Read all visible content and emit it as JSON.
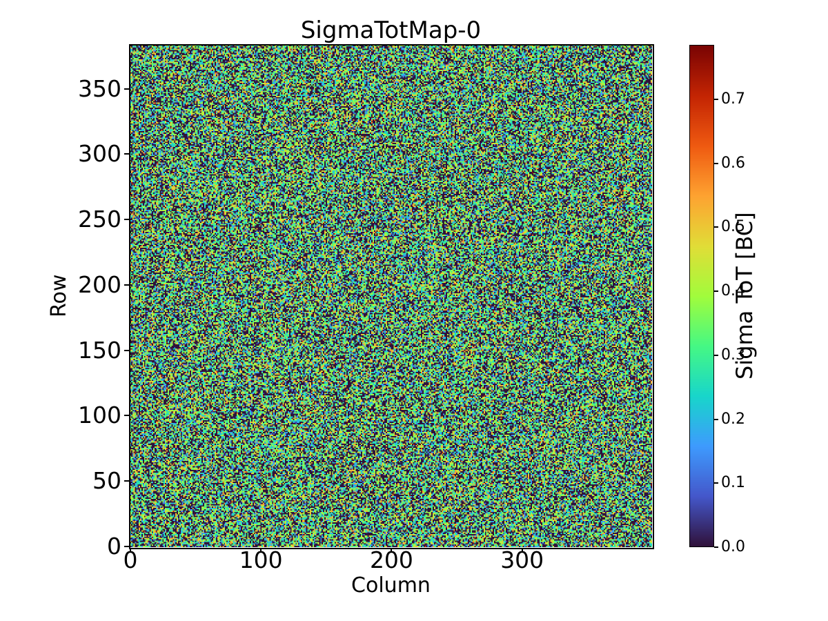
{
  "chart_data": {
    "type": "heatmap",
    "title": "SigmaTotMap-0",
    "xlabel": "Column",
    "ylabel": "Row",
    "x_ticks": [
      0,
      100,
      200,
      300
    ],
    "y_ticks": [
      0,
      50,
      100,
      150,
      200,
      250,
      300,
      350
    ],
    "x_range": [
      0,
      400
    ],
    "y_range": [
      0,
      384
    ],
    "grid": {
      "cols": 400,
      "rows": 384
    },
    "value_range": {
      "vmin": 0.0,
      "vmax": 0.785
    },
    "colorbar": {
      "label": "Sigma ToT [BC]",
      "tick_values": [
        0.0,
        0.1,
        0.2,
        0.3,
        0.4,
        0.5,
        0.6,
        0.7
      ],
      "tick_labels": [
        "0.0",
        "0.1",
        "0.2",
        "0.3",
        "0.4",
        "0.5",
        "0.6",
        "0.7"
      ]
    },
    "colormap": {
      "name": "turbo",
      "anchors": [
        "#30123b",
        "#4458cb",
        "#3e9bfe",
        "#18d6cb",
        "#46f884",
        "#a2fc3c",
        "#e1dd37",
        "#fea331",
        "#ef5a11",
        "#c42503",
        "#7a0403"
      ]
    },
    "noise_model": {
      "description": "per-pixel Sigma ToT values: random noise map",
      "seed": 7,
      "p_zero": 0.35,
      "gauss_mean": 0.32,
      "gauss_std": 0.14,
      "gauss_clip_max": 0.55,
      "p_hot": 0.01,
      "hot_min": 0.55,
      "hot_max": 0.785
    },
    "axes_color": "#000000",
    "background": "#ffffff",
    "grid_lines": false,
    "legend": false
  }
}
